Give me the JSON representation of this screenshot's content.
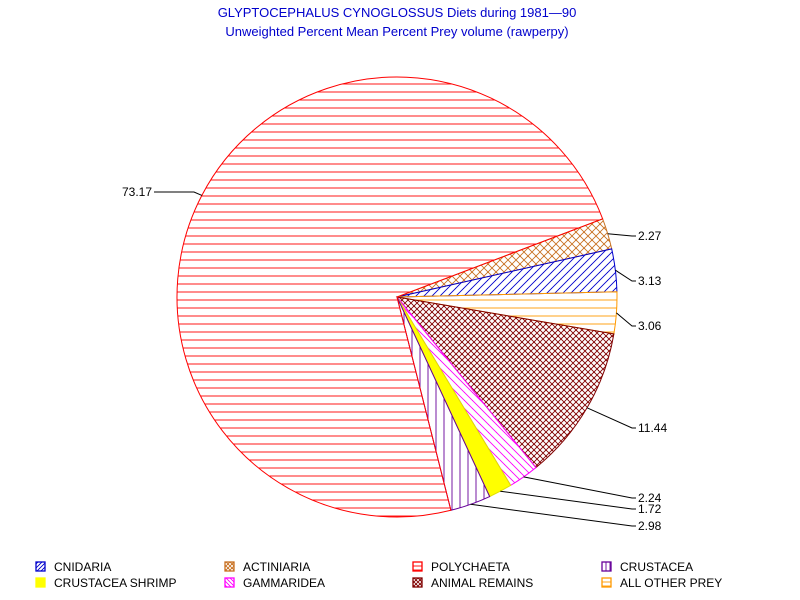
{
  "title_line1": "GLYPTOCEPHALUS CYNOGLOSSUS Diets during 1981—90",
  "title_line2": "Unweighted Percent Mean Percent Prey  volume (rawperpy)",
  "chart_data": {
    "type": "pie",
    "title": "GLYPTOCEPHALUS CYNOGLOSSUS Diets during 1981—90",
    "subtitle": "Unweighted Percent Mean Percent Prey  volume (rawperpy)",
    "slices": [
      {
        "name": "ACTINIARIA",
        "value": 2.27,
        "label": "2.27",
        "color": "#c87020",
        "pattern": "crosshatch"
      },
      {
        "name": "CNIDARIA",
        "value": 3.13,
        "label": "3.13",
        "color": "#0000cc",
        "pattern": "diag-up"
      },
      {
        "name": "ALL OTHER PREY",
        "value": 3.06,
        "label": "3.06",
        "color": "#ff9900",
        "pattern": "horizontal"
      },
      {
        "name": "ANIMAL REMAINS",
        "value": 11.44,
        "label": "11.44",
        "color": "#800000",
        "pattern": "crosshatch-dense"
      },
      {
        "name": "GAMMARIDEA",
        "value": 2.24,
        "label": "2.24",
        "color": "#ff00ff",
        "pattern": "diag-down"
      },
      {
        "name": "CRUSTACEA SHRIMP",
        "value": 1.72,
        "label": "1.72",
        "color": "#ffff00",
        "pattern": "solid"
      },
      {
        "name": "CRUSTACEA",
        "value": 2.98,
        "label": "2.98",
        "color": "#660099",
        "pattern": "vertical"
      },
      {
        "name": "POLYCHAETA",
        "value": 73.17,
        "label": "73.17",
        "color": "#ff0000",
        "pattern": "horizontal"
      }
    ],
    "legend": {
      "placement": "bottom",
      "entries": [
        {
          "name": "CNIDARIA",
          "color": "#0000cc",
          "pattern": "diag-up"
        },
        {
          "name": "ACTINIARIA",
          "color": "#c87020",
          "pattern": "crosshatch"
        },
        {
          "name": "POLYCHAETA",
          "color": "#ff0000",
          "pattern": "horizontal"
        },
        {
          "name": "CRUSTACEA",
          "color": "#660099",
          "pattern": "vertical"
        },
        {
          "name": "CRUSTACEA SHRIMP",
          "color": "#ffff00",
          "pattern": "solid"
        },
        {
          "name": "GAMMARIDEA",
          "color": "#ff00ff",
          "pattern": "diag-down"
        },
        {
          "name": "ANIMAL REMAINS",
          "color": "#800000",
          "pattern": "crosshatch-dense"
        },
        {
          "name": "ALL OTHER PREY",
          "color": "#ff9900",
          "pattern": "horizontal"
        }
      ]
    }
  }
}
